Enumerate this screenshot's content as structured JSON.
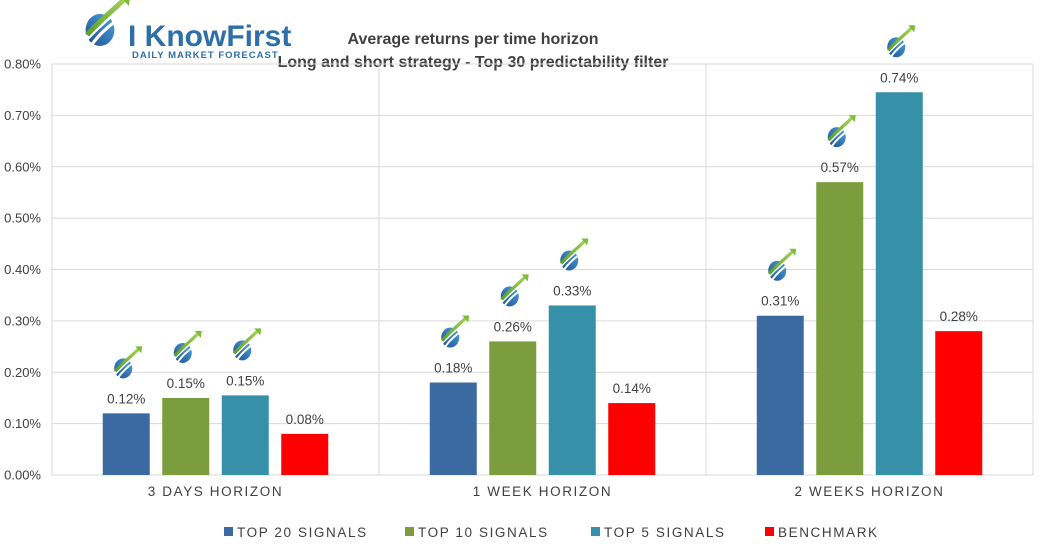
{
  "logo": {
    "name": "I KnowFirst",
    "tagline": "DAILY MARKET FORECAST"
  },
  "chart_data": {
    "type": "bar",
    "title": "Average returns per time horizon",
    "subtitle": "Long and short strategy - Top 30 predictability filter",
    "categories": [
      "3 DAYS HORIZON",
      "1 WEEK HORIZON",
      "2 WEEKS HORIZON"
    ],
    "series": [
      {
        "name": "TOP 20 SIGNALS",
        "color": "#3b6aa0",
        "values": [
          0.12,
          0.18,
          0.31
        ],
        "labels": [
          "0.12%",
          "0.18%",
          "0.31%"
        ]
      },
      {
        "name": "TOP 10 SIGNALS",
        "color": "#7b9d3e",
        "values": [
          0.15,
          0.26,
          0.57
        ],
        "labels": [
          "0.15%",
          "0.26%",
          "0.57%"
        ]
      },
      {
        "name": "TOP 5 SIGNALS",
        "color": "#3590a8",
        "values": [
          0.155,
          0.33,
          0.745
        ],
        "labels": [
          "0.15%",
          "0.33%",
          "0.74%"
        ]
      },
      {
        "name": "BENCHMARK",
        "color": "#ff0000",
        "values": [
          0.08,
          0.14,
          0.28
        ],
        "labels": [
          "0.08%",
          "0.14%",
          "0.28%"
        ]
      }
    ],
    "yticks": [
      "0.00%",
      "0.10%",
      "0.20%",
      "0.30%",
      "0.40%",
      "0.50%",
      "0.60%",
      "0.70%",
      "0.80%"
    ],
    "ylim": [
      0,
      0.8
    ],
    "grid": true,
    "legend_position": "bottom",
    "marker_icon": "knowfirst-logo-icon"
  }
}
